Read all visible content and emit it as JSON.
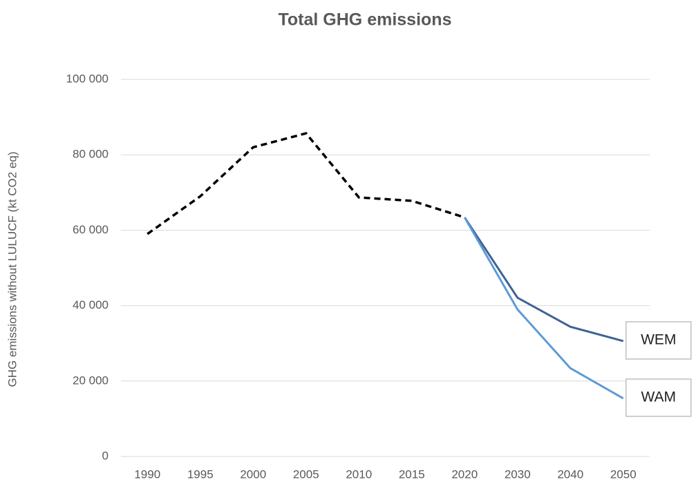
{
  "chart_data": {
    "type": "line",
    "title": "Total GHG emissions",
    "y_label": "GHG emissions without LULUCF (kt CO2 eq)",
    "categories": [
      "1990",
      "1995",
      "2000",
      "2005",
      "2010",
      "2015",
      "2020",
      "2030",
      "2040",
      "2050"
    ],
    "series": [
      {
        "color": "#000000",
        "line_style": "dashed",
        "values": [
          59000,
          69000,
          82000,
          85700,
          68700,
          67800,
          63400,
          null,
          null,
          null
        ]
      },
      {
        "name": "WEM",
        "color": "#3f6294",
        "line_style": "solid",
        "values": [
          null,
          null,
          null,
          null,
          null,
          null,
          63400,
          42100,
          34400,
          30600
        ]
      },
      {
        "name": "WAM",
        "color": "#5b9bd5",
        "line_style": "solid",
        "values": [
          null,
          null,
          null,
          null,
          null,
          null,
          63400,
          39000,
          23400,
          15400
        ]
      }
    ],
    "ylim": [
      0,
      100000
    ],
    "yticks": [
      0,
      {
        "value": 20000,
        "label": "20 000"
      },
      {
        "value": 40000,
        "label": "40 000"
      },
      {
        "value": 60000,
        "label": "60 000"
      },
      {
        "value": 80000,
        "label": "80 000"
      },
      {
        "value": 100000,
        "label": "100 000"
      }
    ],
    "grid": true
  }
}
